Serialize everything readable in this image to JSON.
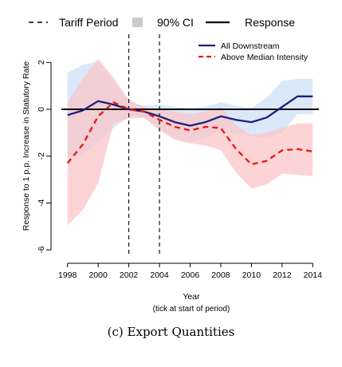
{
  "legend_top": {
    "tariff_period": "Tariff Period",
    "ci": "90% CI",
    "response": "Response"
  },
  "caption": "(c) Export Quantities",
  "chart_data": {
    "type": "line",
    "xlabel": "Year",
    "xlabel_note": "(tick at start of period)",
    "ylabel": "Response to 1 p.p. Increase in Statutory Rate",
    "xlim": [
      1997.6,
      2014.4
    ],
    "ylim": [
      -6.3,
      3.2
    ],
    "x_ticks": [
      1998,
      2000,
      2002,
      2004,
      2006,
      2008,
      2010,
      2012,
      2014
    ],
    "y_ticks": [
      2,
      0,
      -2,
      -4,
      -6
    ],
    "reference_line_y": 0,
    "tariff_period": [
      2002,
      2004
    ],
    "x": [
      1998,
      1999,
      2000,
      2001,
      2002,
      2003,
      2004,
      2005,
      2006,
      2007,
      2008,
      2009,
      2010,
      2011,
      2012,
      2013,
      2014
    ],
    "series": [
      {
        "name": "All Downstream",
        "color": "#1f1f7a",
        "band_color": "#d6e6fa",
        "dash": "solid",
        "values": [
          -0.25,
          -0.05,
          0.35,
          0.2,
          0.0,
          -0.1,
          -0.3,
          -0.55,
          -0.7,
          -0.55,
          -0.3,
          -0.45,
          -0.55,
          -0.35,
          0.1,
          0.55,
          0.55
        ],
        "ci_upper": [
          1.55,
          1.9,
          2.05,
          1.2,
          0.3,
          0.15,
          0.2,
          0.1,
          0.0,
          0.1,
          0.3,
          0.15,
          0.05,
          0.5,
          1.2,
          1.3,
          1.3
        ],
        "ci_lower": [
          -2.05,
          -2.0,
          -1.35,
          -0.8,
          -0.3,
          -0.35,
          -0.8,
          -1.2,
          -1.4,
          -1.2,
          -0.95,
          -1.05,
          -1.15,
          -1.2,
          -1.0,
          -0.2,
          -0.2
        ]
      },
      {
        "name": "Above Median Intensity",
        "color": "#e8170f",
        "band_color": "#fbc4c6",
        "dash": "dashed",
        "values": [
          -2.3,
          -1.5,
          -0.3,
          0.3,
          0.0,
          -0.1,
          -0.45,
          -0.75,
          -0.9,
          -0.75,
          -0.8,
          -1.7,
          -2.35,
          -2.2,
          -1.75,
          -1.7,
          -1.8
        ],
        "ci_upper": [
          0.3,
          1.3,
          2.15,
          1.35,
          0.4,
          0.1,
          0.0,
          -0.1,
          -0.2,
          -0.1,
          0.1,
          -0.7,
          -1.1,
          -1.0,
          -0.8,
          -0.6,
          -0.6
        ],
        "ci_lower": [
          -4.95,
          -4.3,
          -3.15,
          -0.6,
          -0.4,
          -0.35,
          -0.9,
          -1.3,
          -1.45,
          -1.55,
          -1.75,
          -2.7,
          -3.4,
          -3.2,
          -2.75,
          -2.8,
          -2.85
        ]
      }
    ]
  }
}
